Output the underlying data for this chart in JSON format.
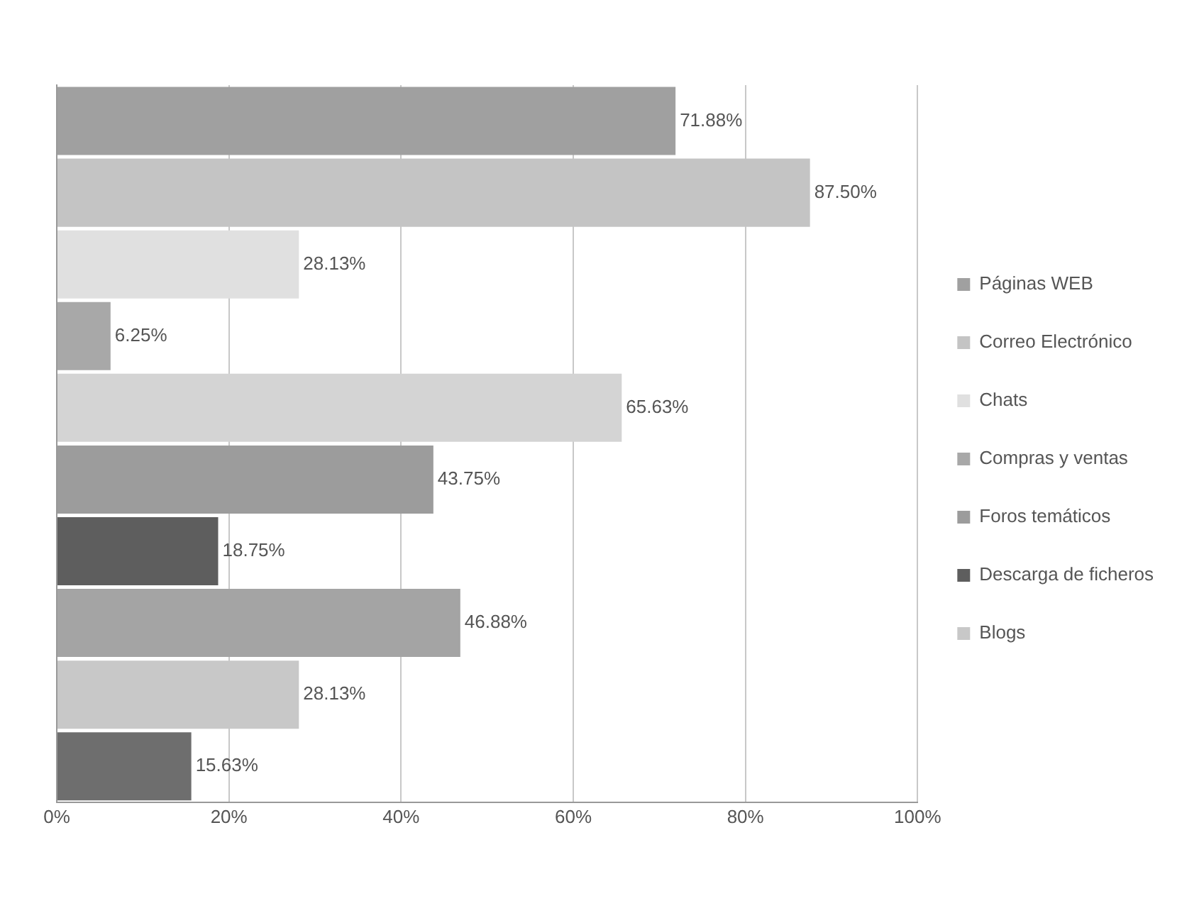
{
  "chart_data": {
    "type": "bar",
    "orientation": "horizontal",
    "categories": [
      null,
      null,
      null,
      null,
      null,
      null,
      null,
      null,
      null,
      null
    ],
    "series": [
      {
        "name": "Páginas WEB",
        "color": "#a0a0a0",
        "values": [
          71.88,
          null,
          null,
          null,
          null,
          null,
          null,
          null,
          null,
          null
        ],
        "value_labels": [
          "71.88%",
          null,
          null,
          null,
          null,
          null,
          null,
          null,
          null,
          null
        ]
      },
      {
        "name": "Correo Electrónico",
        "color": "#c4c4c4",
        "values": [
          null,
          87.5,
          null,
          null,
          null,
          null,
          null,
          null,
          null,
          null
        ],
        "value_labels": [
          null,
          "87.50%",
          null,
          null,
          null,
          null,
          null,
          null,
          null,
          null
        ]
      },
      {
        "name": "Chats",
        "color": "#e0e0e0",
        "values": [
          null,
          null,
          28.13,
          null,
          null,
          null,
          null,
          null,
          null,
          null
        ],
        "value_labels": [
          null,
          null,
          "28.13%",
          null,
          null,
          null,
          null,
          null,
          null,
          null
        ]
      },
      {
        "name": "Compras y ventas",
        "color": "#a8a8a8",
        "values": [
          null,
          null,
          null,
          6.25,
          null,
          null,
          null,
          null,
          null,
          null
        ],
        "value_labels": [
          null,
          null,
          null,
          "6.25%",
          null,
          null,
          null,
          null,
          null,
          null
        ]
      },
      {
        "color": "#d4d4d4",
        "values": [
          null,
          null,
          null,
          null,
          65.63,
          null,
          null,
          null,
          null,
          null
        ],
        "value_labels": [
          null,
          null,
          null,
          null,
          "65.63%",
          null,
          null,
          null,
          null,
          null
        ]
      },
      {
        "name": "Foros temáticos",
        "color": "#9c9c9c",
        "values": [
          null,
          null,
          null,
          null,
          null,
          43.75,
          null,
          null,
          null,
          null
        ],
        "value_labels": [
          null,
          null,
          null,
          null,
          null,
          "43.75%",
          null,
          null,
          null,
          null
        ]
      },
      {
        "name": "Descarga de ficheros",
        "color": "#5e5e5e",
        "values": [
          null,
          null,
          null,
          null,
          null,
          null,
          18.75,
          null,
          null,
          null
        ],
        "value_labels": [
          null,
          null,
          null,
          null,
          null,
          null,
          "18.75%",
          null,
          null,
          null
        ]
      },
      {
        "color": "#a4a4a4",
        "values": [
          null,
          null,
          null,
          null,
          null,
          null,
          null,
          46.88,
          null,
          null
        ],
        "value_labels": [
          null,
          null,
          null,
          null,
          null,
          null,
          null,
          "46.88%",
          null,
          null
        ]
      },
      {
        "name": "Blogs",
        "color": "#c8c8c8",
        "values": [
          null,
          null,
          null,
          null,
          null,
          null,
          null,
          null,
          28.13,
          null
        ],
        "value_labels": [
          null,
          null,
          null,
          null,
          null,
          null,
          null,
          null,
          "28.13%",
          null
        ]
      },
      {
        "color": "#6e6e6e",
        "values": [
          null,
          null,
          null,
          null,
          null,
          null,
          null,
          null,
          null,
          15.63
        ],
        "value_labels": [
          null,
          null,
          null,
          null,
          null,
          null,
          null,
          null,
          null,
          "15.63%"
        ]
      }
    ],
    "xlim": [
      0,
      100
    ],
    "xticks": [
      {
        "value": 0,
        "label": "0%"
      },
      {
        "value": 20,
        "label": "20%"
      },
      {
        "value": 40,
        "label": "40%"
      },
      {
        "value": 60,
        "label": "60%"
      },
      {
        "value": 80,
        "label": "80%"
      },
      {
        "value": 100,
        "label": "100%"
      }
    ],
    "grid": "x",
    "legend": "right",
    "tick_labels": "x"
  }
}
